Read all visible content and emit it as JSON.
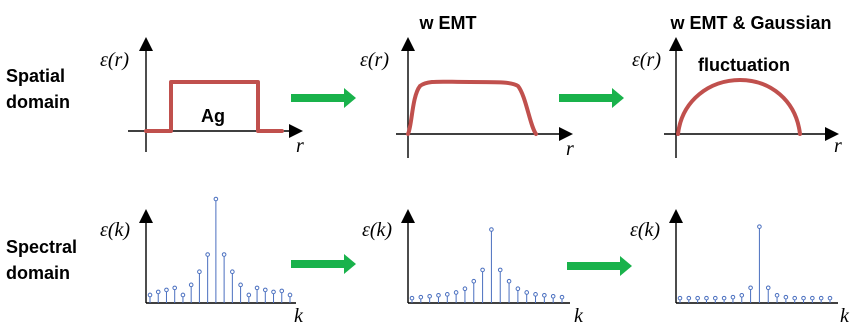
{
  "row_labels": {
    "spatial": [
      "Spatial",
      "domain"
    ],
    "spectral": [
      "Spectral",
      "domain"
    ]
  },
  "column_titles": {
    "col2": "w EMT",
    "col3": "w EMT & Gaussian"
  },
  "inner_labels": {
    "ag": "Ag",
    "fluctuation": "fluctuation"
  },
  "axis_labels": {
    "eps_r": "ε(r)",
    "r": "r",
    "eps_k": "ε(k)",
    "k": "k"
  },
  "colors": {
    "arrow": "#19b24b",
    "curve": "#c0504d",
    "stems": "#4a6fbf"
  },
  "spectra": [
    {
      "name": "spectrum-rect",
      "values": [
        0.05,
        0.08,
        0.1,
        0.12,
        0.05,
        0.15,
        0.28,
        0.45,
        1.0,
        0.45,
        0.28,
        0.15,
        0.05,
        0.12,
        0.1,
        0.08,
        0.09,
        0.05
      ]
    },
    {
      "name": "spectrum-emt",
      "values": [
        0.02,
        0.03,
        0.04,
        0.05,
        0.06,
        0.08,
        0.12,
        0.2,
        0.32,
        0.75,
        0.32,
        0.2,
        0.12,
        0.08,
        0.06,
        0.05,
        0.04,
        0.03
      ]
    },
    {
      "name": "spectrum-gaussian",
      "values": [
        0.02,
        0.02,
        0.02,
        0.02,
        0.02,
        0.02,
        0.03,
        0.05,
        0.13,
        0.78,
        0.13,
        0.05,
        0.03,
        0.02,
        0.02,
        0.02,
        0.02,
        0.02
      ]
    }
  ]
}
